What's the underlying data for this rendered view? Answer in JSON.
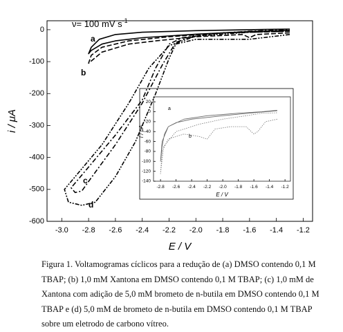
{
  "chart_data": [
    {
      "type": "line",
      "annotation": "ν= 100 mV s",
      "annotation_sup": "-1",
      "x_label": "E / V",
      "y_label": "i / μA",
      "xlim": [
        -3.11,
        -1.13
      ],
      "ylim": [
        -600,
        28
      ],
      "xticks": [
        {
          "value": -3,
          "label": "-3.0"
        },
        -2.8,
        -2.6,
        -2.4,
        -2.2,
        {
          "value": -2,
          "label": "-2.0"
        },
        -1.8,
        -1.6,
        -1.4,
        -1.2
      ],
      "yticks": [
        0,
        -100,
        -200,
        -300,
        -400,
        -500,
        -600
      ],
      "series": [
        {
          "name": "a",
          "color": "#000000",
          "dash": "none",
          "x": [
            -1.3,
            -1.6,
            -2.0,
            -2.4,
            -2.6,
            -2.7,
            -2.78,
            -2.8,
            -2.78,
            -2.72,
            -2.6,
            -2.4,
            -2.0,
            -1.6,
            -1.3
          ],
          "values": [
            -2,
            -6,
            -14,
            -25,
            -35,
            -45,
            -65,
            -75,
            -55,
            -30,
            -15,
            -8,
            -3,
            0,
            2
          ]
        },
        {
          "name": "b",
          "color": "#000000",
          "dash": "7 3",
          "x": [
            -1.3,
            -1.55,
            -1.6,
            -1.65,
            -2.0,
            -2.3,
            -2.5,
            -2.7,
            -2.8,
            -2.78,
            -2.7,
            -2.5,
            -2.2,
            -1.8,
            -1.3
          ],
          "values": [
            -10,
            -15,
            -25,
            -15,
            -22,
            -35,
            -45,
            -70,
            -105,
            -80,
            -55,
            -35,
            -22,
            -10,
            -5
          ]
        },
        {
          "name": "c",
          "color": "#000000",
          "dash": "7 3 2 3",
          "x": [
            -1.3,
            -1.8,
            -2.1,
            -2.2,
            -2.3,
            -2.4,
            -2.6,
            -2.8,
            -2.93,
            -2.9,
            -2.85,
            -2.8,
            -2.6,
            -2.4,
            -2.25,
            -2.15,
            -2.0,
            -1.6,
            -1.3
          ],
          "values": [
            -5,
            -10,
            -25,
            -45,
            -120,
            -220,
            -330,
            -430,
            -495,
            -510,
            -505,
            -475,
            -360,
            -230,
            -110,
            -40,
            -15,
            -5,
            0
          ]
        },
        {
          "name": "d",
          "color": "#000000",
          "dash": "6 2 2 2 2 2",
          "x": [
            -1.3,
            -1.6,
            -2.0,
            -2.15,
            -2.2,
            -2.3,
            -2.45,
            -2.6,
            -2.75,
            -2.85,
            -2.95,
            -2.98,
            -2.9,
            -2.7,
            -2.5,
            -2.35,
            -2.2,
            -2.0,
            -1.6,
            -1.3
          ],
          "values": [
            -15,
            -30,
            -30,
            -45,
            -90,
            -200,
            -350,
            -460,
            -540,
            -550,
            -540,
            -500,
            -460,
            -360,
            -230,
            -120,
            -50,
            -20,
            -8,
            -3
          ]
        }
      ]
    },
    {
      "type": "line",
      "x_label": "E / V",
      "y_label": "I / μA",
      "xlim": [
        -2.89,
        -1.13
      ],
      "ylim": [
        -140,
        30
      ],
      "xticks": [
        -2.8,
        -2.6,
        -2.4,
        -2.2,
        {
          "value": -2,
          "label": "-2.0"
        },
        -1.8,
        -1.6,
        -1.4,
        -1.2
      ],
      "yticks": [
        20,
        0,
        -20,
        -40,
        -60,
        -80,
        -100,
        -120,
        -140
      ],
      "series": [
        {
          "name": "a",
          "color": "#666666",
          "dash": "none",
          "x": [
            -1.3,
            -1.6,
            -2.0,
            -2.4,
            -2.6,
            -2.7,
            -2.75,
            -2.78,
            -2.8,
            -2.78,
            -2.7,
            -2.5,
            -2.2,
            -1.8,
            -1.5,
            -1.3
          ],
          "values": [
            2,
            -2,
            -8,
            -15,
            -22,
            -30,
            -45,
            -70,
            -100,
            -60,
            -30,
            -15,
            -8,
            -3,
            0,
            3
          ]
        },
        {
          "name": "b",
          "color": "#777777",
          "dash": "1.5 1.5",
          "x": [
            -1.3,
            -1.45,
            -1.55,
            -1.6,
            -1.7,
            -1.9,
            -2.1,
            -2.2,
            -2.3,
            -2.5,
            -2.7,
            -2.78,
            -2.8,
            -2.76,
            -2.6,
            -2.3,
            -2.0,
            -1.7,
            -1.5,
            -1.3
          ],
          "values": [
            -15,
            -20,
            -40,
            -45,
            -30,
            -30,
            -35,
            -55,
            -50,
            -45,
            -55,
            -80,
            -125,
            -70,
            -40,
            -25,
            -15,
            -8,
            -3,
            -2
          ]
        }
      ]
    }
  ],
  "caption": "Figura 1. Voltamogramas cíclicos para a redução de (a) DMSO contendo 0,1 M TBAP; (b) 1,0 mM Xantona em DMSO contendo 0,1 M TBAP; (c) 1,0 mM de Xantona com adição de 5,0 mM brometo de n-butila em DMSO contendo 0,1 M TBAP e (d) 5,0 mM de brometo de n-butila em DMSO contendo 0,1 M TBAP sobre um eletrodo de carbono vítreo."
}
